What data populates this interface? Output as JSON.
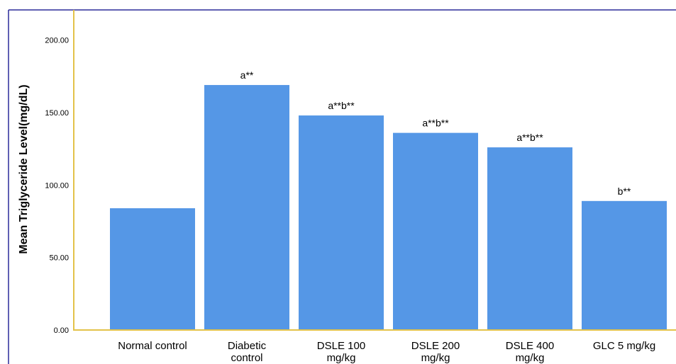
{
  "chart_data": {
    "type": "bar",
    "title": "",
    "xlabel": "",
    "ylabel": "Mean Triglyceride Level(mg/dL)",
    "ylim": [
      0,
      200
    ],
    "yticks": [
      "0.00",
      "50.00",
      "100.00",
      "150.00",
      "200.00"
    ],
    "ytick_values": [
      0,
      50,
      100,
      150,
      200
    ],
    "grid": false,
    "categories": [
      [
        "Normal control"
      ],
      [
        "Diabetic",
        "control"
      ],
      [
        "DSLE 100",
        "mg/kg"
      ],
      [
        "DSLE 200",
        "mg/kg"
      ],
      [
        "DSLE 400",
        "mg/kg"
      ],
      [
        "GLC 5 mg/kg"
      ]
    ],
    "values": [
      84,
      169,
      148,
      136,
      126,
      89
    ],
    "annotations": [
      "",
      "a**",
      "a**b**",
      "a**b**",
      "a**b**",
      "b**"
    ],
    "colors": {
      "bar": "#5597e6",
      "axis": "#e3c24a",
      "frame": "#2b2b9a"
    }
  }
}
